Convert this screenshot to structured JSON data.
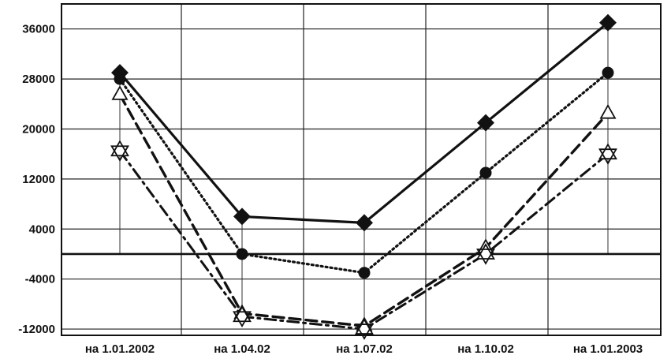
{
  "chart_data": {
    "type": "line",
    "title": "",
    "xlabel": "",
    "ylabel": "",
    "categories": [
      "на 1.01.2002",
      "на 1.04.02",
      "на 1.07.02",
      "на 1.10.02",
      "на 1.01.2003"
    ],
    "y_ticks": [
      "-12000",
      "-4000",
      "4000",
      "12000",
      "20000",
      "28000",
      "36000"
    ],
    "ylim": [
      -13000,
      40000
    ],
    "grid": true,
    "legend": "none",
    "baseline": 0,
    "series": [
      {
        "marker": "diamond",
        "dash": "solid",
        "values": [
          29000,
          6000,
          5000,
          21000,
          37000
        ]
      },
      {
        "marker": "circle",
        "dash": "dotted",
        "values": [
          28000,
          0,
          -3000,
          13000,
          29000
        ]
      },
      {
        "marker": "triangle",
        "dash": "dashed",
        "values": [
          25500,
          -9500,
          -11500,
          1000,
          22500
        ]
      },
      {
        "marker": "star",
        "dash": "dashdot",
        "values": [
          16500,
          -10000,
          -12000,
          0,
          16000
        ]
      }
    ]
  }
}
